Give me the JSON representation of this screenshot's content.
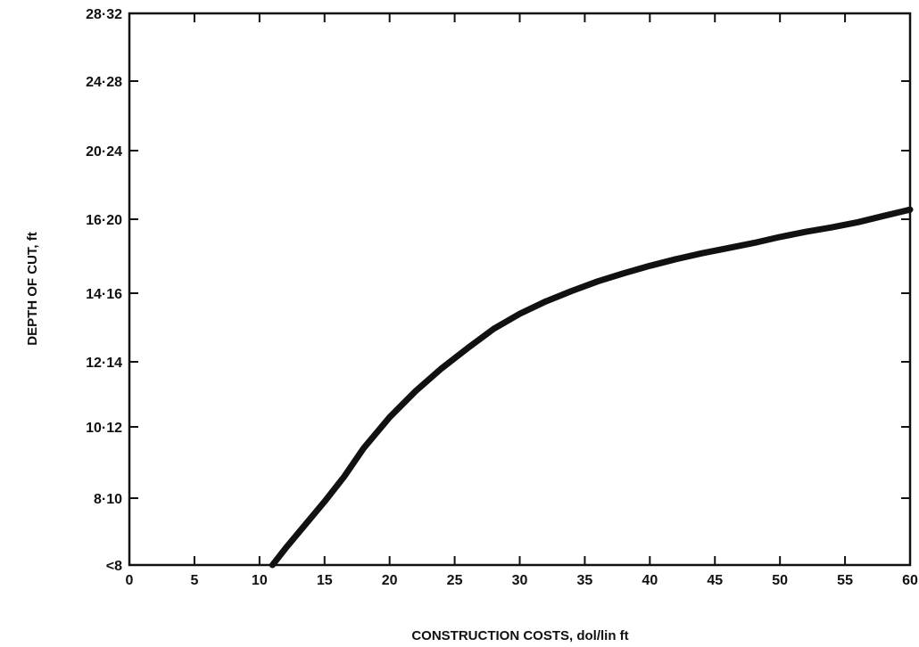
{
  "chart_data": {
    "type": "line",
    "title": "",
    "xlabel": "CONSTRUCTION COSTS, dol/lin ft",
    "ylabel": "DEPTH OF CUT, ft",
    "xlim": [
      0,
      60
    ],
    "x_ticks": [
      0,
      5,
      10,
      15,
      20,
      25,
      30,
      35,
      40,
      45,
      50,
      55,
      60
    ],
    "x_tick_labels": [
      "0",
      "5",
      "10",
      "15",
      "20",
      "25",
      "30",
      "35",
      "40",
      "45",
      "50",
      "55",
      "60"
    ],
    "y_tick_labels": [
      "<8",
      "8·10",
      "10·12",
      "12·14",
      "14·16",
      "16·20",
      "20·24",
      "24·28",
      "28·32"
    ],
    "y_axis_scale": "ordinal depth-of-cut ranges (categories <8 through 28–32 ft, equally spaced)",
    "grid": false,
    "legend": "none",
    "line_color": "#111111",
    "series": [
      {
        "x": [
          11.0,
          12.0,
          13.5,
          15.0,
          16.5,
          18.0,
          20.0,
          22.0,
          24.0,
          26.0,
          28.0,
          30.0,
          32.0,
          34.0,
          36.0,
          38.0,
          40.0,
          42.0,
          44.0,
          46.0,
          48.0,
          50.0,
          52.0,
          54.0,
          56.0,
          58.0,
          60.0
        ],
        "y": [
          0.0,
          0.25,
          0.6,
          0.95,
          1.3,
          1.7,
          2.15,
          2.55,
          2.9,
          3.2,
          3.48,
          3.7,
          3.88,
          4.03,
          4.16,
          4.27,
          4.37,
          4.46,
          4.54,
          4.61,
          4.68,
          4.76,
          4.83,
          4.89,
          4.96,
          5.05,
          5.14
        ]
      }
    ]
  }
}
